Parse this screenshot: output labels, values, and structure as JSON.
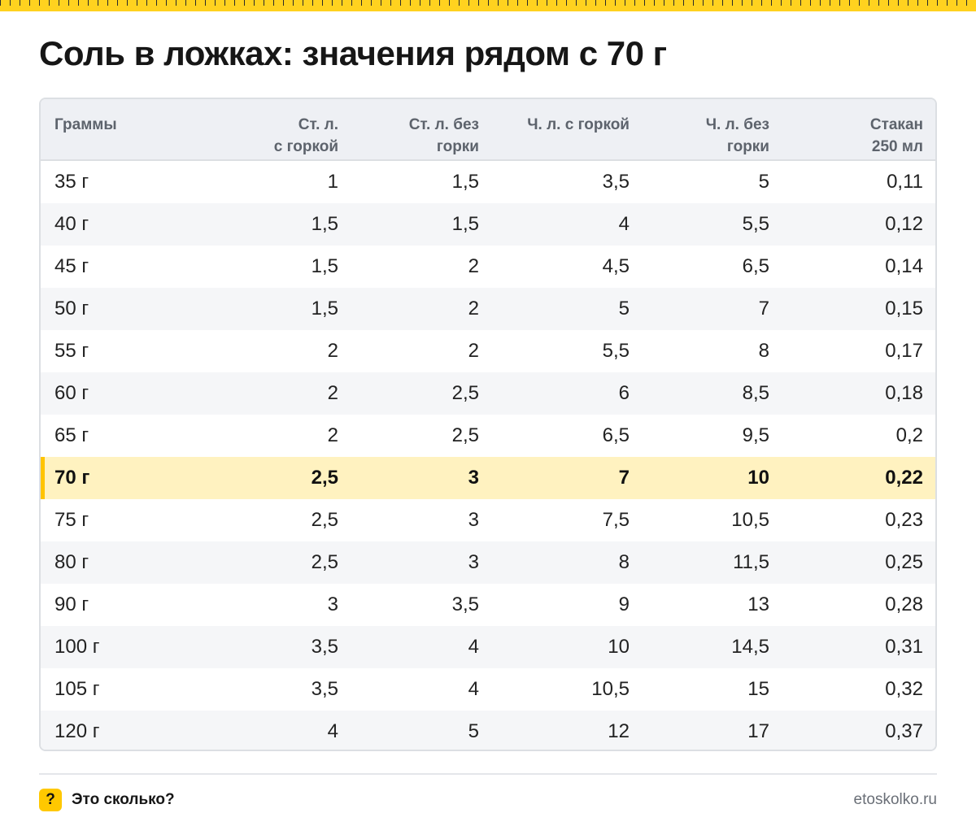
{
  "title": "Соль в ложках: значения рядом с 70 г",
  "colors": {
    "ruler": "#ffd21f",
    "highlight_row": "#fff2c0",
    "highlight_marker": "#ffc400",
    "header_bg": "#eef0f4",
    "alt_row": "#f5f6f8",
    "badge": "#ffc800"
  },
  "table": {
    "headers": [
      {
        "lines": [
          "Граммы"
        ]
      },
      {
        "lines": [
          "Ст. л.",
          "с горкой"
        ]
      },
      {
        "lines": [
          "Ст. л. без",
          "горки"
        ]
      },
      {
        "lines": [
          "Ч. л. с горкой"
        ]
      },
      {
        "lines": [
          "Ч. л. без",
          "горки"
        ]
      },
      {
        "lines": [
          "Стакан",
          "250 мл"
        ]
      }
    ],
    "highlighted_row_index": 7,
    "rows": [
      [
        "35 г",
        "1",
        "1,5",
        "3,5",
        "5",
        "0,11"
      ],
      [
        "40 г",
        "1,5",
        "1,5",
        "4",
        "5,5",
        "0,12"
      ],
      [
        "45 г",
        "1,5",
        "2",
        "4,5",
        "6,5",
        "0,14"
      ],
      [
        "50 г",
        "1,5",
        "2",
        "5",
        "7",
        "0,15"
      ],
      [
        "55 г",
        "2",
        "2",
        "5,5",
        "8",
        "0,17"
      ],
      [
        "60 г",
        "2",
        "2,5",
        "6",
        "8,5",
        "0,18"
      ],
      [
        "65 г",
        "2",
        "2,5",
        "6,5",
        "9,5",
        "0,2"
      ],
      [
        "70 г",
        "2,5",
        "3",
        "7",
        "10",
        "0,22"
      ],
      [
        "75 г",
        "2,5",
        "3",
        "7,5",
        "10,5",
        "0,23"
      ],
      [
        "80 г",
        "2,5",
        "3",
        "8",
        "11,5",
        "0,25"
      ],
      [
        "90 г",
        "3",
        "3,5",
        "9",
        "13",
        "0,28"
      ],
      [
        "100 г",
        "3,5",
        "4",
        "10",
        "14,5",
        "0,31"
      ],
      [
        "105 г",
        "3,5",
        "4",
        "10,5",
        "15",
        "0,32"
      ],
      [
        "120 г",
        "4",
        "5",
        "12",
        "17",
        "0,37"
      ]
    ]
  },
  "footer": {
    "badge_icon": "question-icon",
    "badge_glyph": "?",
    "brand": "Это сколько?",
    "site": "etoskolko.ru"
  }
}
